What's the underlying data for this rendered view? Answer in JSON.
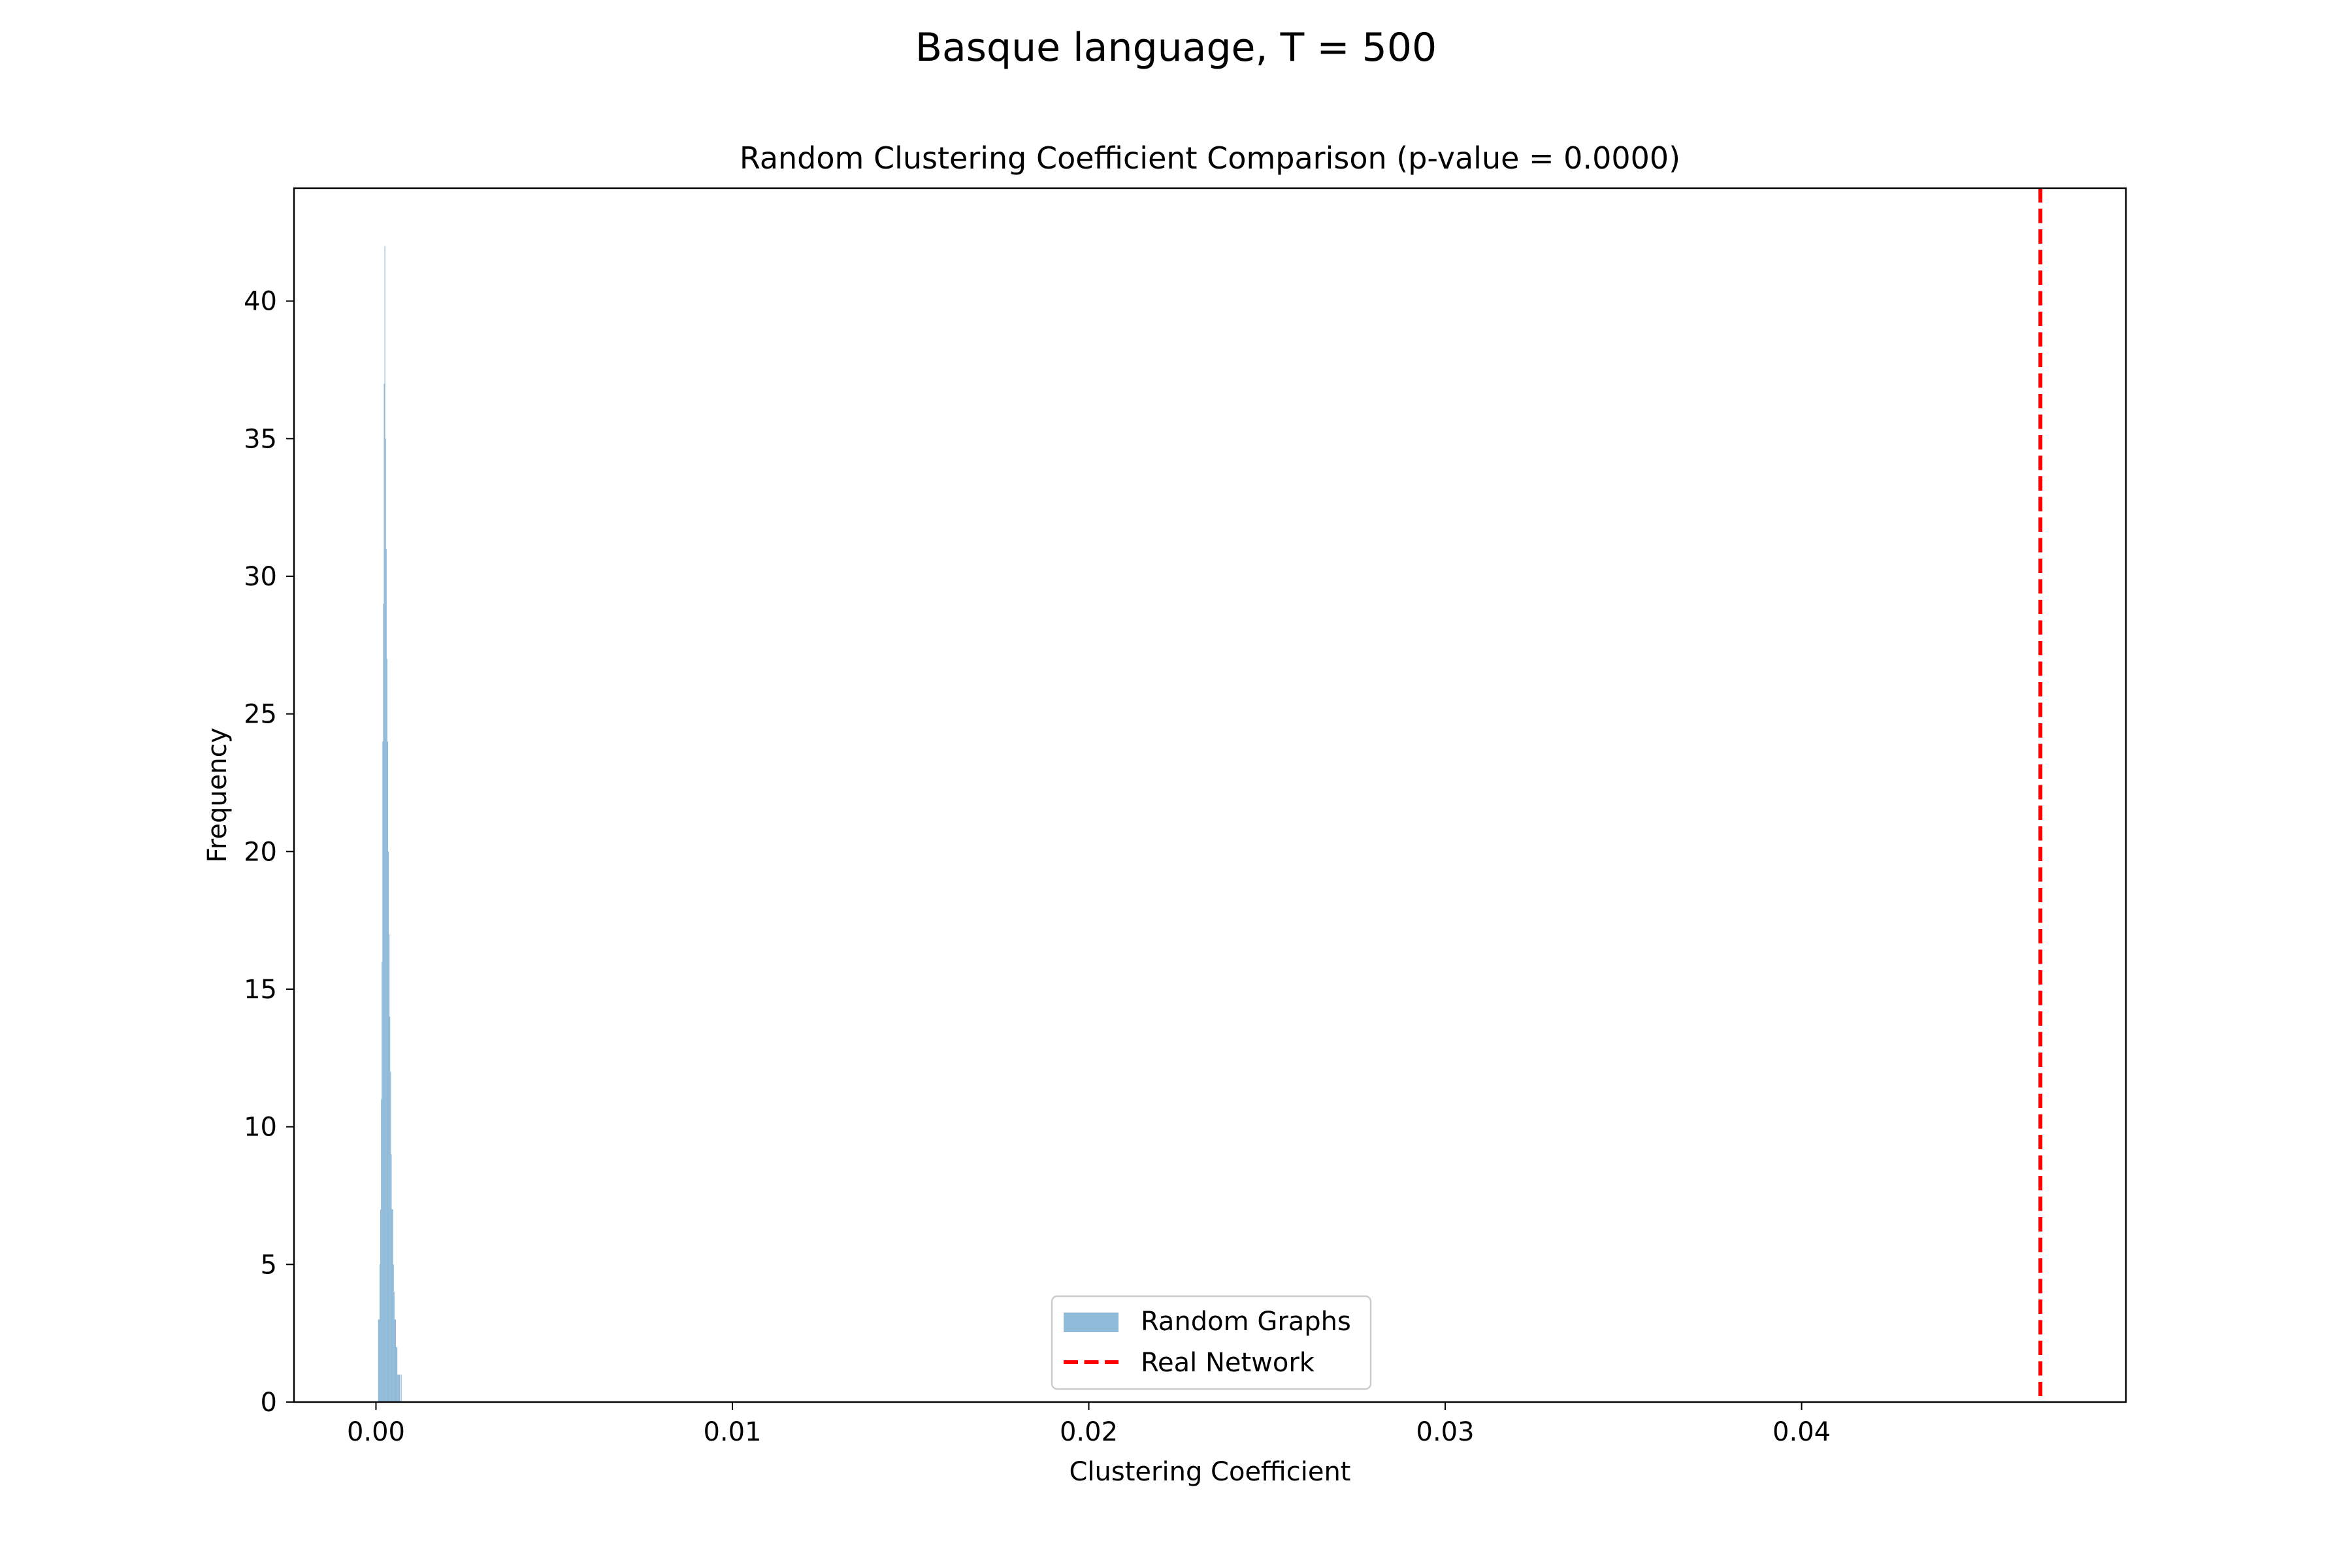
{
  "figure": {
    "suptitle": "Basque language, T = 500"
  },
  "chart_data": {
    "type": "histogram",
    "title": "Random Clustering Coefficient Comparison (p-value = 0.0000)",
    "xlabel": "Clustering Coefficient",
    "ylabel": "Frequency",
    "xlim": [
      -0.0023,
      0.0491
    ],
    "ylim": [
      0,
      44.1
    ],
    "x_ticks": [
      0.0,
      0.01,
      0.02,
      0.03,
      0.04
    ],
    "x_tick_labels": [
      "0.00",
      "0.01",
      "0.02",
      "0.03",
      "0.04"
    ],
    "y_ticks": [
      0,
      5,
      10,
      15,
      20,
      25,
      30,
      35,
      40
    ],
    "y_tick_labels": [
      "0",
      "5",
      "10",
      "15",
      "20",
      "25",
      "30",
      "35",
      "40"
    ],
    "histogram": {
      "name": "Random Graphs",
      "color": "#1f77b4",
      "alpha": 0.5,
      "bin_edges": [
        6e-05,
        8e-05,
        0.0001,
        0.00012,
        0.00014,
        0.00016,
        0.00018,
        0.0002,
        0.00022,
        0.00024,
        0.00026,
        0.00028,
        0.0003,
        0.00032,
        0.00034,
        0.00036,
        0.00038,
        0.0004,
        0.00042,
        0.00044,
        0.00046,
        0.00048,
        0.0005,
        0.00052,
        0.00054,
        0.00056,
        0.00058,
        0.0006,
        0.00062,
        0.00064,
        0.00066,
        0.00068,
        0.0007,
        0.00072
      ],
      "counts": [
        3,
        3,
        5,
        7,
        11,
        16,
        24,
        29,
        37,
        42,
        35,
        31,
        27,
        24,
        20,
        17,
        14,
        12,
        9,
        7,
        7,
        5,
        4,
        3,
        3,
        2,
        2,
        1,
        1,
        1,
        1,
        0,
        1
      ]
    },
    "reference_line": {
      "name": "Real Network",
      "x": 0.0467,
      "color": "#ff0000",
      "style": "dashed"
    },
    "legend": {
      "placement": "lower center",
      "entries": [
        "Random Graphs",
        "Real Network"
      ]
    },
    "grid": false
  }
}
